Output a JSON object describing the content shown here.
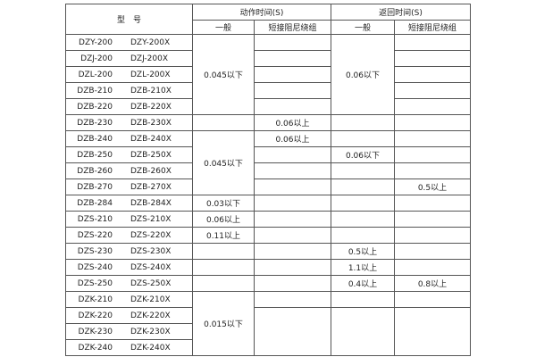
{
  "header": {
    "model": "型　号",
    "action_time": "动作时间(S)",
    "return_time": "返回时间(S)",
    "general": "一般",
    "short_winding": "短接阻尼绕组"
  },
  "rows": [
    {
      "model": [
        "DZY-200",
        "DZY-200X"
      ],
      "action_general": "0.045以下",
      "action_short": "",
      "return_general": "0.06以下",
      "return_short": ""
    },
    {
      "model": [
        "DZJ-200",
        "DZJ-200X"
      ],
      "action_general": "",
      "action_short": "",
      "return_general": "",
      "return_short": ""
    },
    {
      "model": [
        "DZL-200",
        "DZL-200X"
      ],
      "action_general": "",
      "action_short": "",
      "return_general": "",
      "return_short": ""
    },
    {
      "model": [
        "DZB-210",
        "DZB-210X"
      ],
      "action_general": "",
      "action_short": "",
      "return_general": "",
      "return_short": ""
    },
    {
      "model": [
        "DZB-220",
        "DZB-220X"
      ],
      "action_general": "",
      "action_short": "",
      "return_general": "",
      "return_short": ""
    },
    {
      "model": [
        "DZB-230",
        "DZB-230X"
      ],
      "action_general": "",
      "action_short": "0.06以上",
      "return_general": "",
      "return_short": ""
    },
    {
      "model": [
        "DZB-240",
        "DZB-240X"
      ],
      "action_general": "0.045以下",
      "action_short": "0.06以上",
      "return_general": "",
      "return_short": ""
    },
    {
      "model": [
        "DZB-250",
        "DZB-250X"
      ],
      "action_general": "",
      "action_short": "",
      "return_general": "0.06以下",
      "return_short": ""
    },
    {
      "model": [
        "DZB-260",
        "DZB-260X"
      ],
      "action_general": "",
      "action_short": "",
      "return_general": "",
      "return_short": ""
    },
    {
      "model": [
        "DZB-270",
        "DZB-270X"
      ],
      "action_general": "",
      "action_short": "",
      "return_general": "",
      "return_short": "0.5以上"
    },
    {
      "model": [
        "DZB-284",
        "DZB-284X"
      ],
      "action_general": "0.03以下",
      "action_short": "",
      "return_general": "",
      "return_short": ""
    },
    {
      "model": [
        "DZS-210",
        "DZS-210X"
      ],
      "action_general": "0.06以上",
      "action_short": "",
      "return_general": "",
      "return_short": ""
    },
    {
      "model": [
        "DZS-220",
        "DZS-220X"
      ],
      "action_general": "0.11以上",
      "action_short": "",
      "return_general": "",
      "return_short": ""
    },
    {
      "model": [
        "DZS-230",
        "DZS-230X"
      ],
      "action_general": "",
      "action_short": "",
      "return_general": "0.5以上",
      "return_short": ""
    },
    {
      "model": [
        "DZS-240",
        "DZS-240X"
      ],
      "action_general": "",
      "action_short": "",
      "return_general": "1.1以上",
      "return_short": ""
    },
    {
      "model": [
        "DZS-250",
        "DZS-250X"
      ],
      "action_general": "",
      "action_short": "",
      "return_general": "0.4以上",
      "return_short": "0.8以上"
    },
    {
      "model": [
        "DZK-210",
        "DZK-210X"
      ],
      "action_general": "0.015以下",
      "action_short": "",
      "return_general": "",
      "return_short": ""
    },
    {
      "model": [
        "DZK-220",
        "DZK-220X"
      ],
      "action_general": "",
      "action_short": "",
      "return_general": "",
      "return_short": ""
    },
    {
      "model": [
        "DZK-230",
        "DZK-230X"
      ],
      "action_general": "",
      "action_short": "",
      "return_general": "",
      "return_short": ""
    },
    {
      "model": [
        "DZK-240",
        "DZK-240X"
      ],
      "action_general": "",
      "action_short": "",
      "return_general": "",
      "return_short": ""
    }
  ]
}
